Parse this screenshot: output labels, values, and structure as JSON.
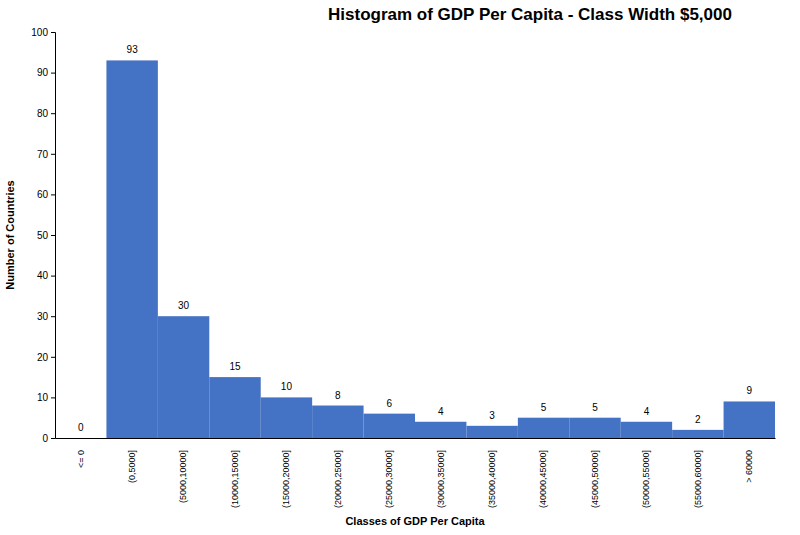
{
  "chart_data": {
    "type": "bar",
    "title": "Histogram of GDP Per Capita - Class Width $5,000",
    "x_label": "Classes of GDP Per Capita",
    "y_label": "Number of Countries",
    "categories": [
      "<= 0",
      "(0,5000]",
      "(5000,10000]",
      "(10000,15000]",
      "(15000,20000]",
      "(20000,25000]",
      "(25000,30000]",
      "(30000,35000]",
      "(35000,40000]",
      "(40000,45000]",
      "(45000,50000]",
      "(50000,55000]",
      "(55000,60000]",
      "> 60000"
    ],
    "values": [
      0,
      93,
      30,
      15,
      10,
      8,
      6,
      4,
      3,
      5,
      5,
      4,
      2,
      9
    ],
    "color": "#4472c4",
    "ylim": [
      0,
      100
    ],
    "yticks": [
      0,
      10,
      20,
      30,
      40,
      50,
      60,
      70,
      80,
      90,
      100
    ],
    "grid": false,
    "data_labels": true
  }
}
